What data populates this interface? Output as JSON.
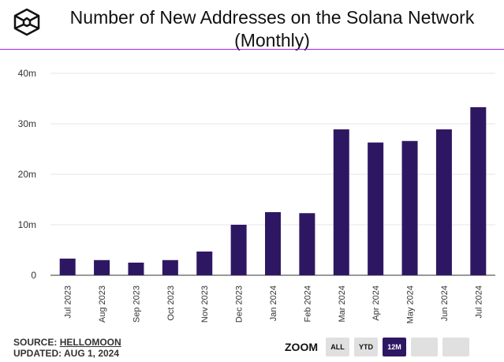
{
  "header": {
    "title_line1": "Number of New Addresses on the Solana Network",
    "title_line2": "(Monthly)"
  },
  "footer": {
    "source_label": "SOURCE:",
    "source": "HELLOMOON",
    "updated": "UPDATED: AUG 1, 2024"
  },
  "zoom": {
    "label": "ZOOM",
    "buttons": [
      "ALL",
      "YTD",
      "12M",
      "",
      ""
    ],
    "selected": "12M"
  },
  "colors": {
    "bar": "#2e1762",
    "rule": "#a020f0"
  },
  "chart_data": {
    "type": "bar",
    "title": "Number of New Addresses on the Solana Network (Monthly)",
    "categories": [
      "Jul 2023",
      "Aug 2023",
      "Sep 2023",
      "Oct 2023",
      "Nov 2023",
      "Dec 2023",
      "Jan 2024",
      "Feb 2024",
      "Mar 2024",
      "Apr 2024",
      "May 2024",
      "Jun 2024",
      "Jul 2024"
    ],
    "values": [
      3.3,
      3.0,
      2.5,
      3.0,
      4.7,
      10.0,
      12.5,
      12.3,
      28.9,
      26.3,
      26.6,
      28.9,
      33.3
    ],
    "unit": "m",
    "ylim": [
      0,
      40
    ],
    "yticks": [
      0,
      10,
      20,
      30,
      40
    ],
    "ytick_labels": [
      "0",
      "10m",
      "20m",
      "30m",
      "40m"
    ],
    "grid": true
  }
}
